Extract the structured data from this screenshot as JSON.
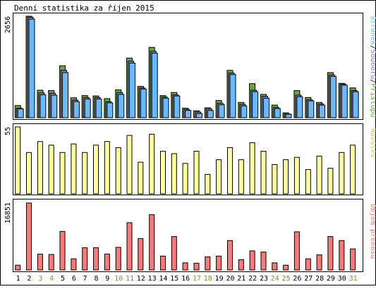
{
  "title": "Denní statistika za říjen 2015",
  "colors": {
    "frame": "#000000",
    "pristupu": "#66aa33",
    "souboru": "#8877dd",
    "stranek": "#66bbff",
    "navstev": "#ffff99",
    "prenos": "#ff7777",
    "weekend_label": "#66aa00",
    "weekday_label": "#000000"
  },
  "chart_data": [
    {
      "type": "bar",
      "ylabel": "2656",
      "ymax": 2656,
      "legend": [
        {
          "text": "Stránek",
          "color": "#66bbff"
        },
        {
          "text": "/",
          "color": "#000000"
        },
        {
          "text": "Souborů",
          "color": "#8877dd"
        },
        {
          "text": "/",
          "color": "#000000"
        },
        {
          "text": "Přístupů",
          "color": "#66aa33"
        }
      ],
      "categories": [
        "1",
        "2",
        "3",
        "4",
        "5",
        "6",
        "7",
        "8",
        "9",
        "10",
        "11",
        "12",
        "13",
        "14",
        "15",
        "16",
        "17",
        "18",
        "19",
        "20",
        "21",
        "22",
        "23",
        "24",
        "25",
        "26",
        "27",
        "28",
        "29",
        "30",
        "31"
      ],
      "series": [
        {
          "name": "Přístupů",
          "values": [
            320,
            2656,
            720,
            710,
            1360,
            520,
            580,
            570,
            500,
            730,
            1560,
            820,
            1840,
            580,
            660,
            250,
            180,
            260,
            450,
            1240,
            400,
            890,
            610,
            330,
            130,
            710,
            530,
            400,
            1180,
            900,
            780
          ]
        },
        {
          "name": "Souborů",
          "values": [
            250,
            2630,
            650,
            640,
            1240,
            460,
            530,
            530,
            420,
            660,
            1480,
            780,
            1740,
            540,
            600,
            220,
            150,
            230,
            380,
            1170,
            350,
            720,
            560,
            270,
            100,
            590,
            470,
            360,
            1120,
            880,
            710
          ]
        },
        {
          "name": "Stránek",
          "values": [
            230,
            2580,
            600,
            590,
            1180,
            420,
            490,
            490,
            390,
            610,
            1430,
            750,
            1690,
            510,
            570,
            190,
            110,
            190,
            340,
            1130,
            310,
            680,
            510,
            240,
            90,
            550,
            440,
            330,
            1080,
            850,
            680
          ]
        }
      ]
    },
    {
      "type": "bar",
      "ylabel": "55",
      "ymax": 55,
      "legend": [
        {
          "text": "Návštěv",
          "color": "#ffff99"
        }
      ],
      "categories": [
        "1",
        "2",
        "3",
        "4",
        "5",
        "6",
        "7",
        "8",
        "9",
        "10",
        "11",
        "12",
        "13",
        "14",
        "15",
        "16",
        "17",
        "18",
        "19",
        "20",
        "21",
        "22",
        "23",
        "24",
        "25",
        "26",
        "27",
        "28",
        "29",
        "30",
        "31"
      ],
      "series": [
        {
          "name": "Návštěv",
          "values": [
            55,
            34,
            43,
            40,
            34,
            41,
            34,
            40,
            43,
            38,
            48,
            26,
            49,
            35,
            33,
            25,
            35,
            16,
            28,
            38,
            28,
            42,
            35,
            24,
            28,
            30,
            20,
            31,
            21,
            34,
            40
          ]
        }
      ]
    },
    {
      "type": "bar",
      "ylabel": "16851",
      "ymax": 16851,
      "legend": [
        {
          "text": "Objem přenosu",
          "color": "#ff7777"
        }
      ],
      "categories": [
        "1",
        "2",
        "3",
        "4",
        "5",
        "6",
        "7",
        "8",
        "9",
        "10",
        "11",
        "12",
        "13",
        "14",
        "15",
        "16",
        "17",
        "18",
        "19",
        "20",
        "21",
        "22",
        "23",
        "24",
        "25",
        "26",
        "27",
        "28",
        "29",
        "30",
        "31"
      ],
      "series": [
        {
          "name": "Objem přenosu",
          "values": [
            1200,
            16851,
            4000,
            3900,
            9700,
            2800,
            5600,
            5600,
            4000,
            5700,
            11900,
            7900,
            13900,
            3500,
            8400,
            1800,
            1700,
            3300,
            3500,
            7400,
            2600,
            4800,
            4500,
            1800,
            1200,
            9600,
            2800,
            3800,
            8400,
            7400,
            5300
          ]
        }
      ]
    }
  ],
  "x_axis": {
    "labels": [
      "1",
      "2",
      "3",
      "4",
      "5",
      "6",
      "7",
      "8",
      "9",
      "10",
      "11",
      "12",
      "13",
      "14",
      "15",
      "16",
      "17",
      "18",
      "19",
      "20",
      "21",
      "22",
      "23",
      "24",
      "25",
      "26",
      "27",
      "28",
      "29",
      "30",
      "31"
    ],
    "weekend": [
      false,
      false,
      true,
      true,
      false,
      false,
      false,
      false,
      false,
      true,
      true,
      false,
      false,
      false,
      false,
      false,
      true,
      true,
      false,
      false,
      false,
      false,
      false,
      true,
      true,
      false,
      false,
      false,
      false,
      false,
      true
    ]
  }
}
